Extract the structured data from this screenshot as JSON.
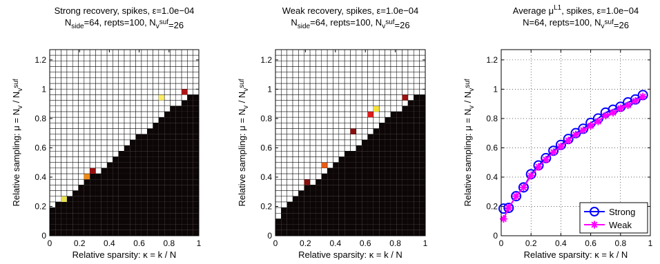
{
  "chart_data": [
    {
      "type": "heatmap",
      "title_line1": "Strong recovery,  spikes, ε=1.0e−04",
      "title_line2": "N_side=64,  repts=100,  N_v^suf=26",
      "xlabel": "Relative sparsity: κ = k / N",
      "ylabel": "Relative sampling: μ = N_v / N_v^suf",
      "xlim": [
        0,
        1
      ],
      "ylim": [
        0,
        1.27
      ],
      "xticks": [
        "0",
        "0.2",
        "0.4",
        "0.6",
        "0.8",
        "1"
      ],
      "yticks": [
        "0",
        "0.2",
        "0.4",
        "0.6",
        "0.8",
        "1",
        "1.2"
      ],
      "grid": "26 x 33 cells; lower-right region near 0 (black), upper-left region 1 (white)",
      "boundary_mu": [
        0.19,
        0.22,
        0.25,
        0.28,
        0.31,
        0.35,
        0.38,
        0.41,
        0.44,
        0.48,
        0.51,
        0.54,
        0.58,
        0.61,
        0.64,
        0.68,
        0.71,
        0.74,
        0.78,
        0.81,
        0.84,
        0.87,
        0.9,
        0.93,
        0.96,
        0.96
      ],
      "highlight_cells": [
        {
          "kappa_index": 2,
          "mu_index": 6,
          "color": "#e8e04a"
        },
        {
          "kappa_index": 6,
          "mu_index": 10,
          "color": "#f08a14"
        },
        {
          "kappa_index": 7,
          "mu_index": 11,
          "color": "#9a1010"
        },
        {
          "kappa_index": 19,
          "mu_index": 24,
          "color": "#ffee60"
        },
        {
          "kappa_index": 23,
          "mu_index": 25,
          "color": "#b01515"
        }
      ]
    },
    {
      "type": "heatmap",
      "title_line1": "Weak recovery,  spikes, ε=1.0e−04",
      "title_line2": "N_side=64,  repts=100,  N_v^suf=26",
      "xlabel": "Relative sparsity: κ = k / N",
      "ylabel": "Relative sampling: μ = N_v / N_v^suf",
      "xlim": [
        0,
        1
      ],
      "ylim": [
        0,
        1.27
      ],
      "xticks": [
        "0",
        "0.2",
        "0.4",
        "0.6",
        "0.8",
        "1"
      ],
      "yticks": [
        "0",
        "0.2",
        "0.4",
        "0.6",
        "0.8",
        "1",
        "1.2"
      ],
      "boundary_mu": [
        0.11,
        0.19,
        0.22,
        0.26,
        0.29,
        0.33,
        0.36,
        0.39,
        0.43,
        0.46,
        0.49,
        0.53,
        0.56,
        0.59,
        0.63,
        0.66,
        0.69,
        0.73,
        0.76,
        0.79,
        0.83,
        0.86,
        0.89,
        0.92,
        0.95,
        0.96
      ],
      "highlight_cells": [
        {
          "kappa_index": 5,
          "mu_index": 9,
          "color": "#8a0f0f"
        },
        {
          "kappa_index": 8,
          "mu_index": 12,
          "color": "#e85a14"
        },
        {
          "kappa_index": 13,
          "mu_index": 18,
          "color": "#8a1010"
        },
        {
          "kappa_index": 16,
          "mu_index": 21,
          "color": "#e01a1a"
        },
        {
          "kappa_index": 17,
          "mu_index": 22,
          "color": "#f6e23a"
        },
        {
          "kappa_index": 22,
          "mu_index": 24,
          "color": "#9a1212"
        }
      ]
    },
    {
      "type": "line",
      "title_line1": "Average μ^L1,  spikes,  ε=1.0e−04",
      "title_line2": "N=64,  repts=100,  N_v^suf=26",
      "xlabel": "Relative sparsity: κ = k / N",
      "ylabel": "Relative sampling: μ = N_v / N_v^suf",
      "xlim": [
        0,
        1
      ],
      "ylim": [
        0,
        1.27
      ],
      "xticks": [
        "0",
        "0.2",
        "0.4",
        "0.6",
        "0.8",
        "1"
      ],
      "yticks": [
        "0",
        "0.2",
        "0.4",
        "0.6",
        "0.8",
        "1",
        "1.2"
      ],
      "grid": "dotted",
      "legend": "bottom-right",
      "x": [
        0.016,
        0.05,
        0.1,
        0.15,
        0.2,
        0.25,
        0.3,
        0.35,
        0.4,
        0.45,
        0.5,
        0.55,
        0.6,
        0.65,
        0.7,
        0.75,
        0.8,
        0.85,
        0.9,
        0.95
      ],
      "series": [
        {
          "name": "Strong",
          "color": "#0000ff",
          "marker": "circle",
          "values": [
            0.185,
            0.19,
            0.27,
            0.33,
            0.42,
            0.48,
            0.53,
            0.58,
            0.62,
            0.66,
            0.7,
            0.73,
            0.77,
            0.8,
            0.84,
            0.86,
            0.88,
            0.91,
            0.93,
            0.96
          ]
        },
        {
          "name": "Weak",
          "color": "#ff00ff",
          "marker": "star",
          "values": [
            0.115,
            0.19,
            0.27,
            0.33,
            0.41,
            0.47,
            0.52,
            0.57,
            0.61,
            0.65,
            0.69,
            0.72,
            0.75,
            0.78,
            0.82,
            0.84,
            0.87,
            0.89,
            0.92,
            0.95
          ]
        }
      ]
    }
  ]
}
